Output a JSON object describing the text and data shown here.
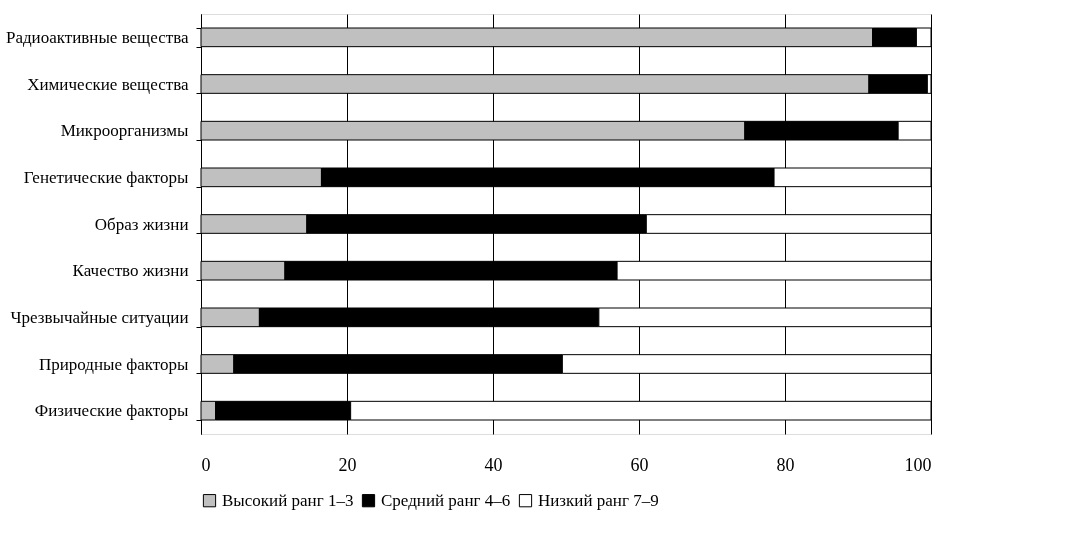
{
  "chart_data": {
    "type": "bar",
    "orientation": "horizontal",
    "stacked": true,
    "categories": [
      "Радиоактивные вещества",
      "Химические вещества",
      "Микроорганизмы",
      "Генетические факторы",
      "Образ жизни",
      "Качество жизни",
      "Чрезвычайные ситуации",
      "Природные факторы",
      "Физические факторы"
    ],
    "series": [
      {
        "name": "Высокий ранг 1–3",
        "color": "#c0c0c0",
        "values": [
          92,
          91.5,
          74.5,
          16.5,
          14.5,
          11.5,
          8,
          4.5,
          2
        ]
      },
      {
        "name": "Средний ранг 4–6",
        "color": "#000000",
        "values": [
          6,
          8,
          21,
          62,
          46.5,
          45.5,
          46.5,
          45,
          18.5
        ]
      },
      {
        "name": "Низкий ранг 7–9",
        "color": "#ffffff",
        "values": [
          2,
          0.5,
          4.5,
          21.5,
          39,
          43,
          45.5,
          50.5,
          79.5
        ]
      }
    ],
    "xlim": [
      0,
      100
    ],
    "xticks": [
      0,
      20,
      40,
      60,
      80,
      100
    ],
    "grid": "x",
    "legend": "bottom"
  }
}
